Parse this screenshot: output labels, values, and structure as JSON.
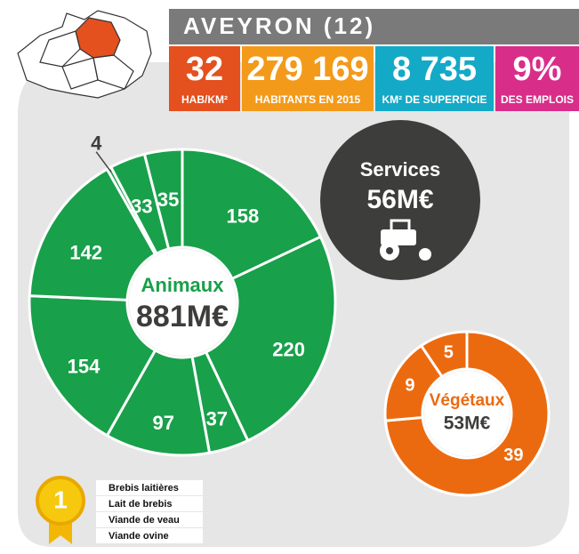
{
  "header": {
    "title": "AVEYRON (12)",
    "stats": [
      {
        "value": "32",
        "label": "HAB/KM²",
        "color": "#e4501e"
      },
      {
        "value": "279 169",
        "label": "HABITANTS EN 2015",
        "color": "#f39a1a"
      },
      {
        "value": "8 735",
        "label": "KM² DE SUPERFICIE",
        "color": "#14a9c7"
      },
      {
        "value": "9%",
        "label": "DES EMPLOIS",
        "color": "#d92d8a"
      }
    ]
  },
  "services": {
    "title": "Services",
    "value": "56M€"
  },
  "chart_data": [
    {
      "type": "donut",
      "title": "Animaux",
      "subtitle": "881M€",
      "color": "#18a04a",
      "values": [
        158,
        220,
        37,
        97,
        154,
        142,
        4,
        33,
        35
      ]
    },
    {
      "type": "donut",
      "title": "Végétaux",
      "subtitle": "53M€",
      "color": "#ec6a0f",
      "values": [
        39,
        9,
        5
      ]
    }
  ],
  "ranking": {
    "rank": "1",
    "items": [
      "Brebis laitières",
      "Lait de brebis",
      "Viande de veau",
      "Viande ovine"
    ]
  }
}
